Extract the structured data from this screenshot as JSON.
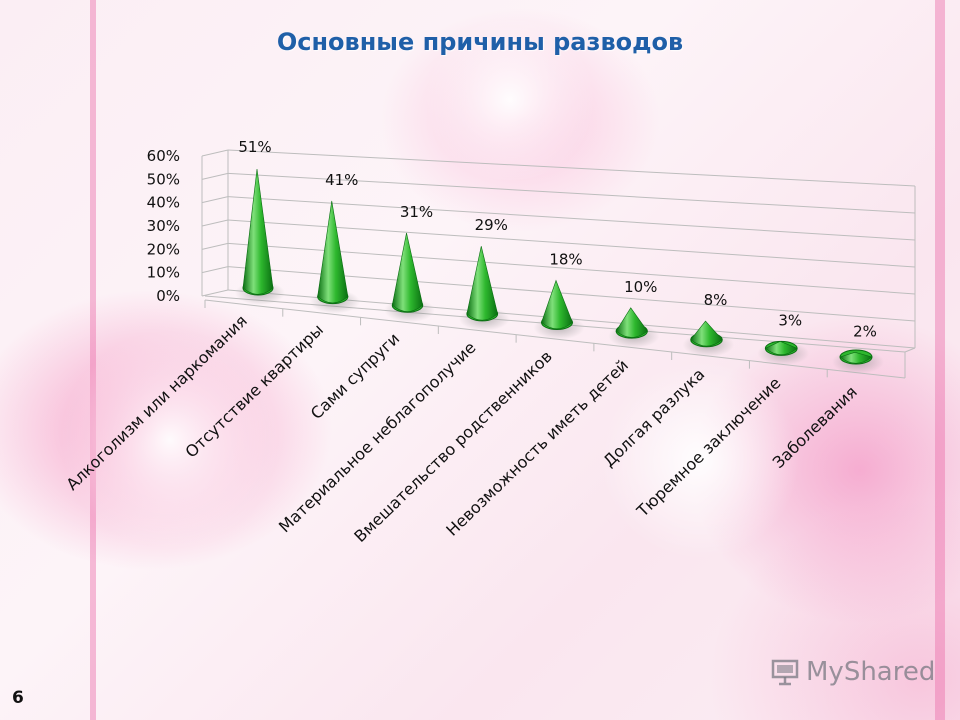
{
  "title": "Основные причины разводов",
  "slide_number": "6",
  "watermark": {
    "text": "MyShared",
    "icon": "projector-screen-icon"
  },
  "colors": {
    "title": "#1f5fa8",
    "cone_light": "#7fe07a",
    "cone_mid": "#2eb82e",
    "cone_dark": "#0a6e12",
    "shadow": "#888888",
    "gridline": "#bdbdbd"
  },
  "chart_data": {
    "type": "bar",
    "subtype": "3d-cone",
    "categories": [
      "Алкоголизм или наркомания",
      "Отсутствие квартиры",
      "Сами супруги",
      "Материальное неблагополучие",
      "Вмешательство родственников",
      "Невозможность иметь детей",
      "Долгая разлука",
      "Тюремное заключение",
      "Заболевания"
    ],
    "values": [
      51,
      41,
      31,
      29,
      18,
      10,
      8,
      3,
      2
    ],
    "data_labels": [
      "51%",
      "41%",
      "31%",
      "29%",
      "18%",
      "10%",
      "8%",
      "3%",
      "2%"
    ],
    "y_ticks": [
      "0%",
      "10%",
      "20%",
      "30%",
      "40%",
      "50%",
      "60%"
    ],
    "ylim": [
      0,
      60
    ],
    "title": "Основные причины разводов",
    "xlabel": "",
    "ylabel": "",
    "grid": true,
    "legend": "none"
  }
}
